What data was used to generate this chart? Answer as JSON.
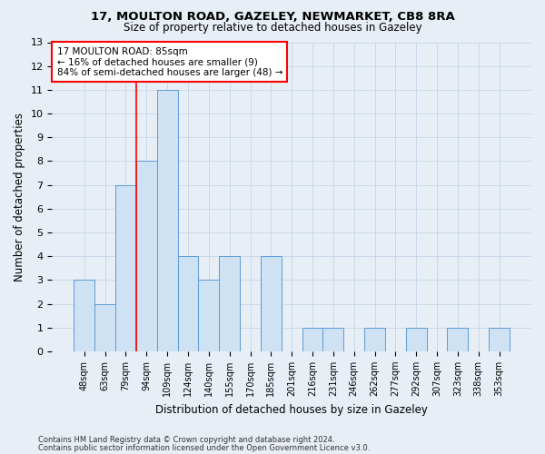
{
  "title1": "17, MOULTON ROAD, GAZELEY, NEWMARKET, CB8 8RA",
  "title2": "Size of property relative to detached houses in Gazeley",
  "xlabel": "Distribution of detached houses by size in Gazeley",
  "ylabel": "Number of detached properties",
  "categories": [
    "48sqm",
    "63sqm",
    "79sqm",
    "94sqm",
    "109sqm",
    "124sqm",
    "140sqm",
    "155sqm",
    "170sqm",
    "185sqm",
    "201sqm",
    "216sqm",
    "231sqm",
    "246sqm",
    "262sqm",
    "277sqm",
    "292sqm",
    "307sqm",
    "323sqm",
    "338sqm",
    "353sqm"
  ],
  "values": [
    3,
    2,
    7,
    8,
    11,
    4,
    3,
    4,
    0,
    4,
    0,
    1,
    1,
    0,
    1,
    0,
    1,
    0,
    1,
    0,
    1
  ],
  "bar_color": "#cfe2f3",
  "bar_edge_color": "#5b9bd5",
  "vline_x": 2.5,
  "annotation_line1": "17 MOULTON ROAD: 85sqm",
  "annotation_line2": "← 16% of detached houses are smaller (9)",
  "annotation_line3": "84% of semi-detached houses are larger (48) →",
  "annotation_box_color": "white",
  "annotation_edge_color": "red",
  "vline_color": "red",
  "ylim": [
    0,
    13
  ],
  "yticks": [
    0,
    1,
    2,
    3,
    4,
    5,
    6,
    7,
    8,
    9,
    10,
    11,
    12,
    13
  ],
  "grid_color": "#c5d5e8",
  "footnote1": "Contains HM Land Registry data © Crown copyright and database right 2024.",
  "footnote2": "Contains public sector information licensed under the Open Government Licence v3.0.",
  "bg_color": "#e8eef5"
}
